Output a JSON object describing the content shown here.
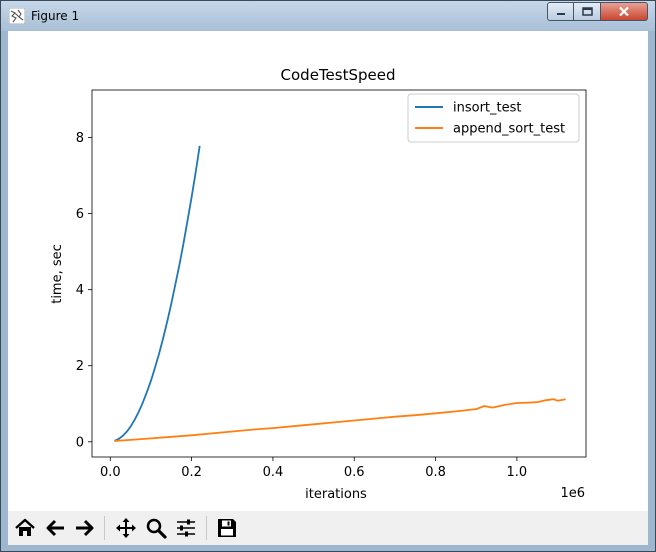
{
  "window": {
    "title": "Figure 1"
  },
  "toolbar": {
    "buttons": [
      {
        "name": "home-button",
        "icon": "home-icon"
      },
      {
        "name": "back-button",
        "icon": "arrow-left-icon"
      },
      {
        "name": "forward-button",
        "icon": "arrow-right-icon"
      },
      {
        "name": "pan-button",
        "icon": "move-icon"
      },
      {
        "name": "zoom-button",
        "icon": "magnifier-icon"
      },
      {
        "name": "configure-subplots-button",
        "icon": "sliders-icon"
      },
      {
        "name": "save-button",
        "icon": "floppy-disk-icon"
      }
    ]
  },
  "chart_data": {
    "type": "line",
    "title": "CodeTestSpeed",
    "xlabel": "iterations",
    "ylabel": "time, sec",
    "x_offset_text": "1e6",
    "xlim": [
      -0.045,
      1.17
    ],
    "ylim": [
      -0.4,
      9.25
    ],
    "x_ticks": [
      0.0,
      0.2,
      0.4,
      0.6,
      0.8,
      1.0
    ],
    "x_tick_labels": [
      "0.0",
      "0.2",
      "0.4",
      "0.6",
      "0.8",
      "1.0"
    ],
    "y_ticks": [
      0,
      2,
      4,
      6,
      8
    ],
    "y_tick_labels": [
      "0",
      "2",
      "4",
      "6",
      "8"
    ],
    "grid": false,
    "legend_position": "top-right",
    "series": [
      {
        "name": "insort_test",
        "color": "#1f77b4",
        "x": [
          0.01,
          0.02,
          0.03,
          0.04,
          0.05,
          0.06,
          0.07,
          0.08,
          0.09,
          0.1,
          0.11,
          0.12,
          0.13,
          0.14,
          0.15,
          0.16,
          0.17,
          0.18,
          0.19,
          0.2,
          0.21,
          0.22
        ],
        "y": [
          0.02,
          0.07,
          0.15,
          0.26,
          0.4,
          0.58,
          0.79,
          1.03,
          1.31,
          1.61,
          1.95,
          2.32,
          2.73,
          3.16,
          3.63,
          4.13,
          4.65,
          5.22,
          5.81,
          6.43,
          7.09,
          7.78
        ]
      },
      {
        "name": "append_sort_test",
        "color": "#ff7f0e",
        "x": [
          0.01,
          0.05,
          0.1,
          0.15,
          0.2,
          0.25,
          0.3,
          0.35,
          0.4,
          0.45,
          0.5,
          0.55,
          0.6,
          0.65,
          0.7,
          0.75,
          0.8,
          0.85,
          0.9,
          0.92,
          0.94,
          0.95,
          0.97,
          1.0,
          1.03,
          1.05,
          1.07,
          1.09,
          1.1,
          1.12
        ],
        "y": [
          0.02,
          0.05,
          0.09,
          0.13,
          0.17,
          0.22,
          0.27,
          0.32,
          0.36,
          0.41,
          0.46,
          0.51,
          0.56,
          0.61,
          0.66,
          0.7,
          0.75,
          0.8,
          0.86,
          0.94,
          0.9,
          0.92,
          0.97,
          1.02,
          1.03,
          1.04,
          1.09,
          1.12,
          1.08,
          1.12
        ]
      }
    ]
  }
}
